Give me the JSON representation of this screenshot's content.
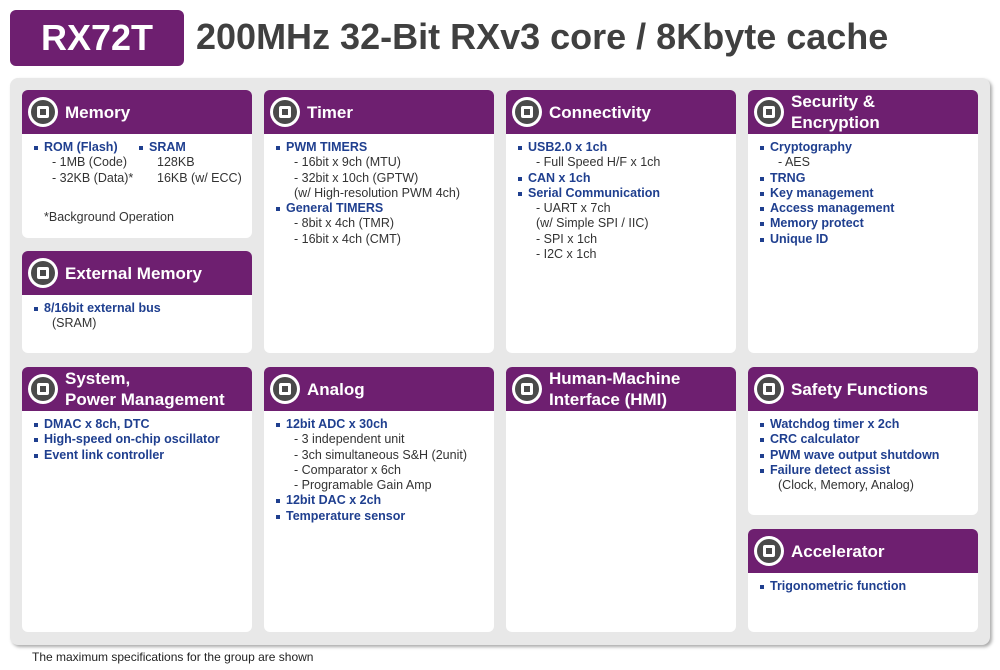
{
  "header": {
    "badge": "RX72T",
    "title": "200MHz 32-Bit RXv3 core / 8Kbyte cache"
  },
  "cards": [
    {
      "title": [
        "Memory"
      ],
      "groups": [
        {
          "heading": "ROM (Flash)",
          "lines": [
            "- 1MB (Code)",
            "- 32KB (Data)*"
          ]
        },
        {
          "heading": "SRAM",
          "lines": [
            "128KB",
            "16KB (w/ ECC)"
          ]
        }
      ],
      "note": "*Background Operation"
    },
    {
      "title": [
        "External Memory"
      ],
      "groups": [
        {
          "heading": "8/16bit external bus",
          "lines": [
            "(SRAM)"
          ]
        }
      ]
    },
    {
      "title": [
        "Timer"
      ],
      "groups": [
        {
          "heading": "PWM TIMERS",
          "lines": [
            "- 16bit x 9ch (MTU)",
            "- 32bit x 10ch (GPTW)",
            "(w/ High-resolution PWM 4ch)"
          ]
        },
        {
          "heading": "General TIMERS",
          "lines": [
            "- 8bit x 4ch (TMR)",
            "- 16bit x 4ch (CMT)"
          ]
        }
      ]
    },
    {
      "title": [
        "Connectivity"
      ],
      "groups": [
        {
          "heading": "USB2.0 x 1ch",
          "lines": [
            "- Full Speed H/F x 1ch"
          ]
        },
        {
          "heading": "CAN x 1ch"
        },
        {
          "heading": "Serial Communication",
          "lines": [
            "- UART x 7ch",
            "(w/ Simple SPI / IIC)",
            "- SPI x 1ch",
            "- I2C x 1ch"
          ]
        }
      ]
    },
    {
      "title": [
        "Security &",
        "Encryption"
      ],
      "groups": [
        {
          "heading": "Cryptography",
          "lines": [
            "- AES"
          ]
        },
        {
          "heading": "TRNG"
        },
        {
          "heading": "Key management"
        },
        {
          "heading": "Access management"
        },
        {
          "heading": "Memory protect"
        },
        {
          "heading": "Unique ID"
        }
      ]
    },
    {
      "title": [
        "System,",
        "Power Management"
      ],
      "groups": [
        {
          "heading": "DMAC x 8ch, DTC"
        },
        {
          "heading": "High-speed on-chip oscillator"
        },
        {
          "heading": "Event link controller"
        }
      ]
    },
    {
      "title": [
        "Analog"
      ],
      "groups": [
        {
          "heading": "12bit  ADC x 30ch",
          "lines": [
            "- 3 independent unit",
            "- 3ch simultaneous S&H (2unit)",
            "- Comparator x 6ch",
            "- Programable Gain Amp"
          ]
        },
        {
          "heading": "12bit DAC x 2ch"
        },
        {
          "heading": "Temperature sensor"
        }
      ]
    },
    {
      "title": [
        "Human-Machine",
        "Interface (HMI)"
      ]
    },
    {
      "title": [
        "Safety Functions"
      ],
      "groups": [
        {
          "heading": "Watchdog timer x 2ch"
        },
        {
          "heading": "CRC calculator"
        },
        {
          "heading": "PWM wave output shutdown"
        },
        {
          "heading": "Failure detect assist",
          "lines": [
            "(Clock, Memory, Analog)"
          ]
        }
      ]
    },
    {
      "title": [
        "Accelerator"
      ],
      "groups": [
        {
          "heading": "Trigonometric function"
        }
      ]
    }
  ],
  "footer": "The maximum specifications for the group are shown"
}
